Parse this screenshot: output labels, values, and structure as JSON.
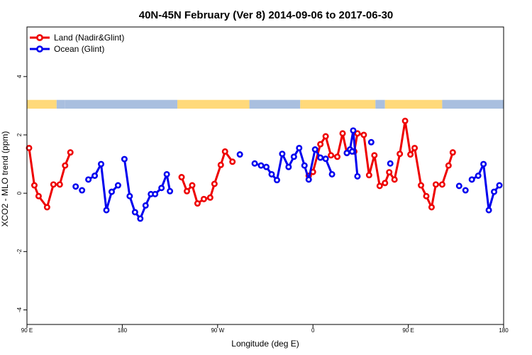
{
  "chart_data": {
    "type": "line",
    "title": "40N-45N February (Ver 8)   2014-09-06 to 2017-06-30",
    "xlabel": "Longitude (deg E)",
    "ylabel": "XCO2 - MLO trend (ppm)",
    "xlim": [
      90,
      540
    ],
    "ylim": [
      -4.5,
      5.7
    ],
    "y_ticks": [
      -4,
      -2,
      0,
      2,
      4
    ],
    "x_ticks": [
      {
        "value": 90,
        "label": "90 E"
      },
      {
        "value": 180,
        "label": "180"
      },
      {
        "value": 270,
        "label": "90 W"
      },
      {
        "value": 360,
        "label": "0"
      },
      {
        "value": 450,
        "label": "90 E"
      },
      {
        "value": 540,
        "label": "180"
      }
    ],
    "grid": false,
    "legend_position": "top-left",
    "land_ocean_strip": {
      "y_range": [
        2.9,
        3.2
      ],
      "land_color": "#ffd97a",
      "ocean_color": "#a9bfdf",
      "segments": [
        {
          "from": 90,
          "to": 118,
          "kind": "land"
        },
        {
          "from": 118,
          "to": 126,
          "kind": "ocean"
        },
        {
          "from": 126,
          "to": 232,
          "kind": "ocean"
        },
        {
          "from": 232,
          "to": 300,
          "kind": "land"
        },
        {
          "from": 300,
          "to": 348,
          "kind": "ocean"
        },
        {
          "from": 348,
          "to": 419,
          "kind": "land"
        },
        {
          "from": 419,
          "to": 428,
          "kind": "ocean"
        },
        {
          "from": 428,
          "to": 482,
          "kind": "land"
        },
        {
          "from": 482,
          "to": 540,
          "kind": "ocean"
        }
      ]
    },
    "series": [
      {
        "name": "Land (Nadir&Glint)",
        "color": "#ee0000",
        "segments": [
          [
            [
              92,
              1.55
            ],
            [
              97,
              0.27
            ],
            [
              101,
              -0.1
            ],
            [
              109,
              -0.48
            ],
            [
              115,
              0.3
            ],
            [
              121,
              0.3
            ],
            [
              126,
              0.95
            ],
            [
              131,
              1.4
            ]
          ],
          [
            [
              236,
              0.55
            ],
            [
              241,
              0.07
            ],
            [
              246,
              0.27
            ],
            [
              251,
              -0.35
            ],
            [
              257,
              -0.2
            ],
            [
              263,
              -0.15
            ],
            [
              267,
              0.32
            ],
            [
              273,
              0.97
            ],
            [
              277,
              1.43
            ],
            [
              284,
              1.08
            ]
          ],
          [
            [
              356,
              0.6
            ],
            [
              360,
              0.73
            ],
            [
              367,
              1.68
            ],
            [
              372,
              1.95
            ],
            [
              377,
              1.3
            ],
            [
              383,
              1.25
            ],
            [
              388,
              2.05
            ],
            [
              392,
              1.38
            ],
            [
              399,
              1.43
            ],
            [
              402,
              2.05
            ],
            [
              408,
              2.0
            ],
            [
              413,
              0.62
            ],
            [
              418,
              1.3
            ],
            [
              423,
              0.25
            ],
            [
              428,
              0.35
            ],
            [
              432,
              0.72
            ],
            [
              437,
              0.47
            ],
            [
              442,
              1.35
            ],
            [
              447,
              2.48
            ],
            [
              452,
              1.33
            ],
            [
              456,
              1.55
            ],
            [
              462,
              0.27
            ],
            [
              467,
              -0.1
            ],
            [
              472,
              -0.48
            ],
            [
              476,
              0.3
            ],
            [
              482,
              0.3
            ],
            [
              488,
              0.95
            ],
            [
              492,
              1.4
            ]
          ]
        ]
      },
      {
        "name": "Ocean (Glint)",
        "color": "#0000ee",
        "segments": [
          [
            [
              136,
              0.23
            ]
          ],
          [
            [
              142,
              0.1
            ]
          ],
          [
            [
              148,
              0.47
            ],
            [
              154,
              0.6
            ],
            [
              160,
              1.0
            ],
            [
              165,
              -0.58
            ],
            [
              170,
              0.05
            ],
            [
              176,
              0.27
            ]
          ],
          [
            [
              182,
              1.17
            ],
            [
              187,
              -0.1
            ],
            [
              192,
              -0.65
            ],
            [
              197,
              -0.87
            ],
            [
              202,
              -0.42
            ],
            [
              207,
              -0.03
            ],
            [
              211,
              -0.03
            ],
            [
              217,
              0.18
            ],
            [
              222,
              0.65
            ],
            [
              225,
              0.07
            ]
          ],
          [
            [
              291,
              1.33
            ]
          ],
          [
            [
              305,
              1.02
            ],
            [
              311,
              0.95
            ],
            [
              316,
              0.9
            ],
            [
              321,
              0.65
            ],
            [
              326,
              0.45
            ],
            [
              331,
              1.35
            ],
            [
              337,
              0.9
            ],
            [
              342,
              1.25
            ],
            [
              347,
              1.55
            ],
            [
              352,
              0.95
            ],
            [
              356,
              0.47
            ],
            [
              362,
              1.5
            ],
            [
              367,
              1.22
            ],
            [
              372,
              1.18
            ],
            [
              378,
              0.65
            ]
          ],
          [
            [
              395,
              1.5
            ],
            [
              398,
              2.15
            ],
            [
              402,
              0.58
            ]
          ],
          [
            [
              392,
              1.38
            ],
            [
              397,
              1.43
            ]
          ],
          [
            [
              415,
              1.75
            ]
          ],
          [
            [
              433,
              1.02
            ]
          ],
          [
            [
              498,
              0.25
            ]
          ],
          [
            [
              504,
              0.1
            ]
          ],
          [
            [
              510,
              0.47
            ],
            [
              516,
              0.6
            ],
            [
              521,
              1.0
            ],
            [
              526,
              -0.58
            ],
            [
              531,
              0.05
            ],
            [
              536,
              0.27
            ]
          ]
        ]
      }
    ]
  }
}
